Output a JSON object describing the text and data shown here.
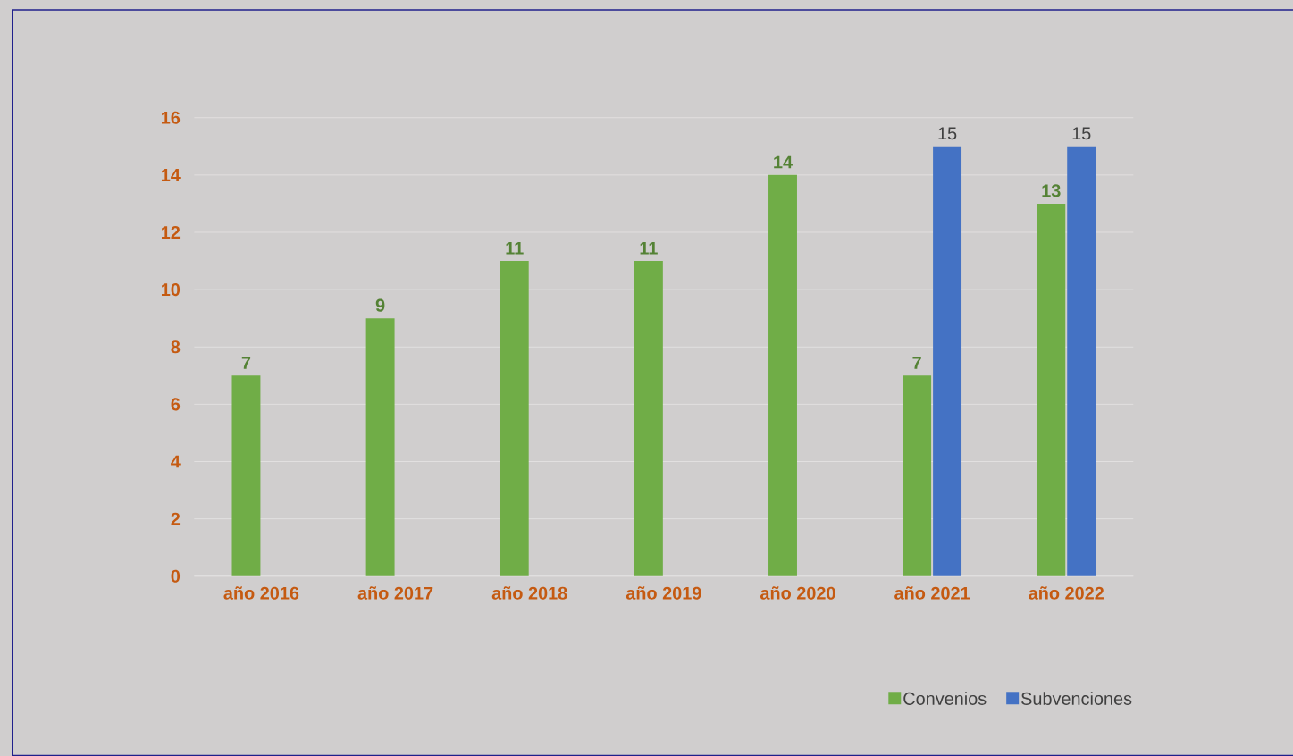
{
  "chart_data": {
    "type": "bar",
    "categories": [
      "año 2016",
      "año 2017",
      "año 2018",
      "año 2019",
      "año 2020",
      "año 2021",
      "año 2022"
    ],
    "series": [
      {
        "name": "Convenios",
        "color": "#70ad47",
        "values": [
          7,
          9,
          11,
          11,
          14,
          7,
          13
        ]
      },
      {
        "name": "Subvenciones",
        "color": "#4472c4",
        "values": [
          null,
          null,
          null,
          null,
          null,
          15,
          15
        ]
      }
    ],
    "ylim": [
      0,
      16
    ],
    "yticks": [
      0,
      2,
      4,
      6,
      8,
      10,
      12,
      14,
      16
    ],
    "grid": "y",
    "legend": "bottom",
    "data_labels": true
  }
}
